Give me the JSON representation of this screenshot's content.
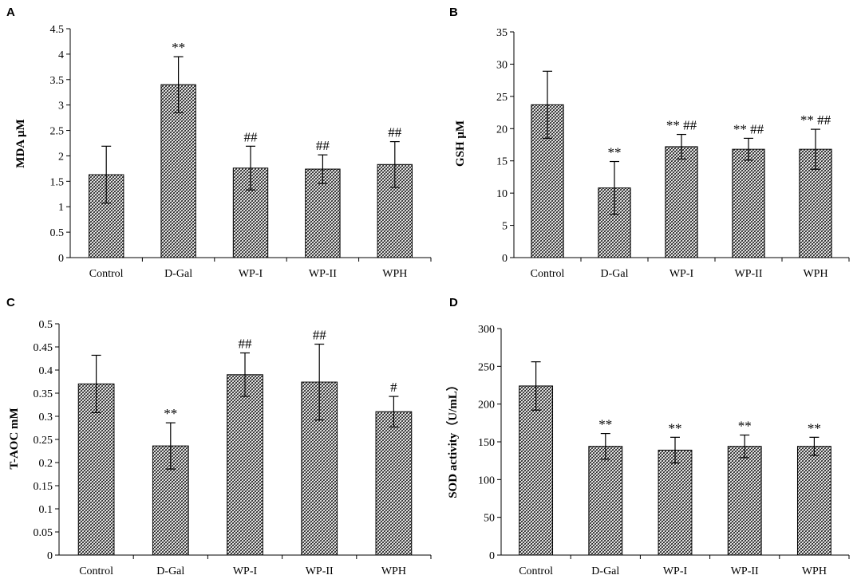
{
  "colors": {
    "bar_fill": "#ffffff",
    "hatch": "#000000",
    "axis": "#000000"
  },
  "chart_data": [
    {
      "type": "bar",
      "panel": "A",
      "ylabel": "MDA μM",
      "categories": [
        "Control",
        "D-Gal",
        "WP-I",
        "WP-II",
        "WPH"
      ],
      "values": [
        1.63,
        3.4,
        1.76,
        1.74,
        1.83
      ],
      "errors": [
        0.56,
        0.55,
        0.43,
        0.28,
        0.45
      ],
      "annotations": [
        "",
        "**",
        "##",
        "##",
        "##"
      ],
      "ylim": [
        0,
        4.5
      ],
      "yticks": [
        "0",
        "0.5",
        "1",
        "1.5",
        "2",
        "2.5",
        "3",
        "3.5",
        "4",
        "4.5"
      ]
    },
    {
      "type": "bar",
      "panel": "B",
      "ylabel": "GSH μM",
      "categories": [
        "Control",
        "D-Gal",
        "WP-I",
        "WP-II",
        "WPH"
      ],
      "values": [
        23.7,
        10.8,
        17.2,
        16.8,
        16.8
      ],
      "errors": [
        5.2,
        4.1,
        1.9,
        1.7,
        3.1
      ],
      "annotations": [
        "",
        "**",
        "** ##",
        "** ##",
        "** ##"
      ],
      "ylim": [
        0,
        35
      ],
      "yticks": [
        "0",
        "5",
        "10",
        "15",
        "20",
        "25",
        "30",
        "35"
      ]
    },
    {
      "type": "bar",
      "panel": "C",
      "ylabel": "T-AOC mM",
      "categories": [
        "Control",
        "D-Gal",
        "WP-I",
        "WP-II",
        "WPH"
      ],
      "values": [
        0.37,
        0.236,
        0.39,
        0.374,
        0.31
      ],
      "errors": [
        0.062,
        0.05,
        0.047,
        0.082,
        0.033
      ],
      "annotations": [
        "",
        "**",
        "##",
        "##",
        "#"
      ],
      "ylim": [
        0,
        0.5
      ],
      "yticks": [
        "0",
        "0.05",
        "0.1",
        "0.15",
        "0.2",
        "0.25",
        "0.3",
        "0.35",
        "0.4",
        "0.45",
        "0.5"
      ]
    },
    {
      "type": "bar",
      "panel": "D",
      "ylabel": "SOD activity（U/mL）",
      "categories": [
        "Control",
        "D-Gal",
        "WP-I",
        "WP-II",
        "WPH"
      ],
      "values": [
        224,
        144,
        139,
        144,
        144
      ],
      "errors": [
        32,
        17,
        17,
        15,
        12
      ],
      "annotations": [
        "",
        "**",
        "**",
        "**",
        "**"
      ],
      "ylim": [
        0,
        300
      ],
      "yticks": [
        "0",
        "50",
        "100",
        "150",
        "200",
        "250",
        "300"
      ]
    }
  ]
}
